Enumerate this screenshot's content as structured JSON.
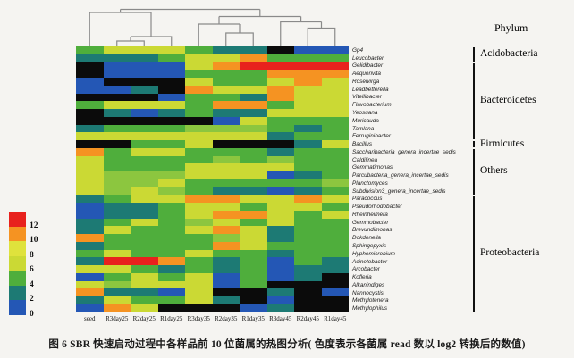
{
  "figure": {
    "caption": "图 6   SBR 快速启动过程中各样品前 10 位菌属的热图分析( 色度表示各菌属 read 数以 log2 转换后的数值)"
  },
  "chart_data": {
    "type": "heatmap",
    "phylum_header": "Phylum",
    "columns": [
      "seed",
      "R3day25",
      "R2day25",
      "R1day25",
      "R3day35",
      "R2day35",
      "R1day35",
      "R3day45",
      "R2day45",
      "R1day45"
    ],
    "rows": [
      "Gp4",
      "Leucobacter",
      "Gelidibacter",
      "Aequorivita",
      "Roseivirga",
      "Leadbetterella",
      "Vitellibacter",
      "Flavobacterium",
      "Yeosuana",
      "Muricauda",
      "Tamlana",
      "Ferruginibacter",
      "Bacillus",
      "Saccharibacteria_genera_incertae_sedis",
      "Caldilinea",
      "Gemmatimonas",
      "Parcubacteria_genera_incertae_sedis",
      "Planctomyces",
      "Subdivision3_genera_incertae_sedis",
      "Paracoccus",
      "Pseudorhodobacter",
      "Rheinheimera",
      "Gemmobacter",
      "Brevundimonas",
      "Dokdonella",
      "Sphingopyxis",
      "Hyphomicrobium",
      "Acinetobacter",
      "Arcobacter",
      "Kofleria",
      "Alkanindiges",
      "Nannocystis",
      "Methylotenera",
      "Methylophilus"
    ],
    "palette": {
      "K": "#0b0b0b",
      "B": "#2457b5",
      "T": "#1d7a74",
      "G": "#4fae3c",
      "g": "#8cc63f",
      "Y": "#cbd934",
      "O": "#f59322",
      "R": "#e8211d"
    },
    "matrix": [
      "GYYYGTTKBB",
      "TTTGYYOGGG",
      "KBBBYORRRR",
      "KBBBGGGOOO",
      "BKKKYGGYOY",
      "BBTKOYYOYY",
      "KKKBGGTOYY",
      "GYYYGOOGYY",
      "KTBTGTTYYY",
      "KKKKKBYGGG",
      "TGGGgggGTG",
      "YYYYYYYTGG",
      "KKGGYKKKTY",
      "OGYYGGGTGG",
      "YGGGGgGgGG",
      "YGGGYYYYGG",
      "YgggYYYBTG",
      "YggYGGGGGg",
      "YgYgGTTBTG",
      "TGYYOOYYOY",
      "BTTGYYGYYG",
      "BTTGYOOYGY",
      "TGYGgYGYGG",
      "TYGGYOYTGG",
      "OGGGGgYTGG",
      "TGGGGOYGGG",
      "GYGGYGGTGG",
      "TRROGTGBGT",
      "YYGTGTGBTT",
      "BGYGYBGBTK",
      "YgYYYBGKKK",
      "OTTBYKKTKB",
      "TYGGYTKBKK",
      "BOYKKKBTKK"
    ],
    "colorbar": {
      "ticks": [
        "12",
        "10",
        "8",
        "6",
        "4",
        "2",
        "0"
      ],
      "bands_top_to_bottom": [
        "#e8211d",
        "#f59322",
        "#dfe23c",
        "#cbd934",
        "#4fae3c",
        "#1d7a74",
        "#2457b5"
      ]
    },
    "phylum_groups": [
      {
        "label": "Acidobacteria",
        "start": 1,
        "end": 2
      },
      {
        "label": "Bacteroidetes",
        "start": 3,
        "end": 12
      },
      {
        "label": "Firmicutes",
        "start": 13,
        "end": 13
      },
      {
        "label": "Others",
        "start": 14,
        "end": 19
      },
      {
        "label": "Proteobacteria",
        "start": 20,
        "end": 34
      }
    ]
  }
}
